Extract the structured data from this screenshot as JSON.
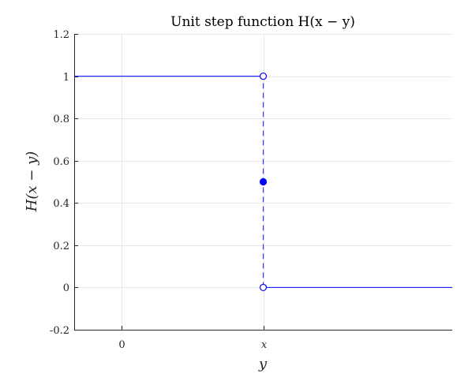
{
  "chart_data": {
    "type": "line",
    "title": "Unit step function H(x − y)",
    "xlabel": "y",
    "ylabel": "H(x − y)",
    "ylim": [
      -0.2,
      1.2
    ],
    "xlim": [
      -1,
      7
    ],
    "grid": true,
    "y_ticks": [
      {
        "value": -0.2,
        "label": "-0.2"
      },
      {
        "value": 0,
        "label": "0"
      },
      {
        "value": 0.2,
        "label": "0.2"
      },
      {
        "value": 0.4,
        "label": "0.4"
      },
      {
        "value": 0.6,
        "label": "0.6"
      },
      {
        "value": 0.8,
        "label": "0.8"
      },
      {
        "value": 1,
        "label": "1"
      },
      {
        "value": 1.2,
        "label": "1.2"
      }
    ],
    "x_ticks": [
      {
        "value": 0,
        "label": "0"
      },
      {
        "value": 3,
        "label": "x"
      }
    ],
    "series": [
      {
        "segment": "upper",
        "points": [
          [
            -1,
            1
          ],
          [
            3,
            1
          ]
        ],
        "style": "solid"
      },
      {
        "segment": "lower",
        "points": [
          [
            3,
            0
          ],
          [
            7,
            0
          ]
        ],
        "style": "solid"
      },
      {
        "segment": "jump",
        "points": [
          [
            3,
            0
          ],
          [
            3,
            1
          ]
        ],
        "style": "dashed"
      }
    ],
    "markers": [
      {
        "x": 3,
        "y": 1,
        "filled": false
      },
      {
        "x": 3,
        "y": 0.5,
        "filled": true
      },
      {
        "x": 3,
        "y": 0,
        "filled": false
      }
    ],
    "line_color": "#0000ff",
    "grid_color": "#e6e6e6",
    "axis_color": "#262626"
  }
}
